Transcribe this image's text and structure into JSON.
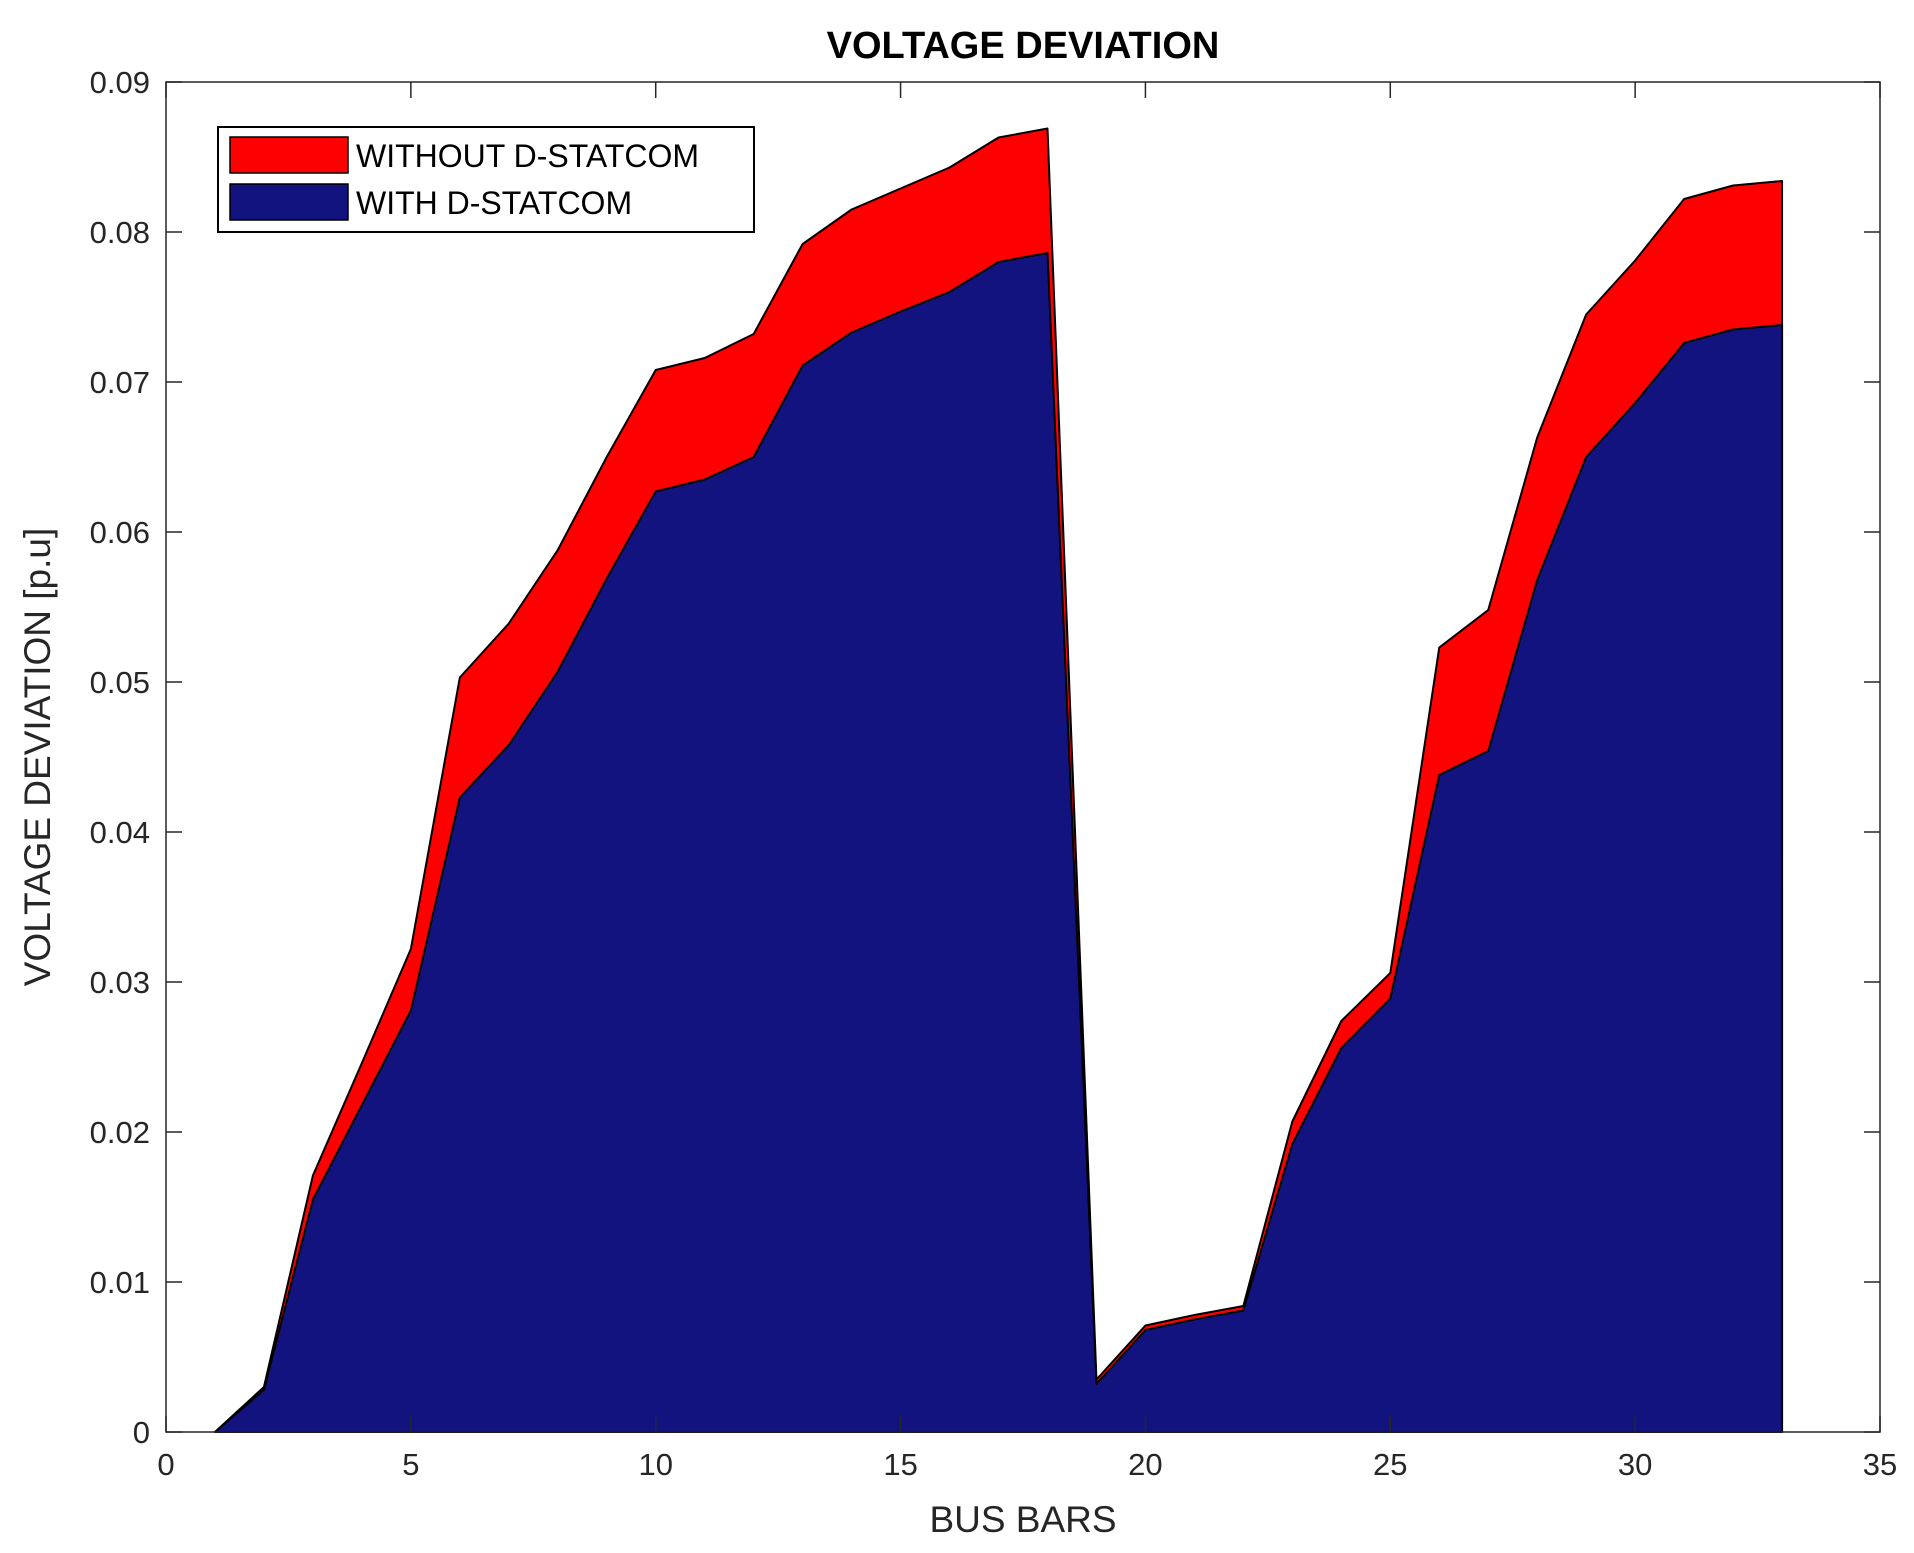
{
  "chart_data": {
    "type": "area",
    "title": "VOLTAGE DEVIATION",
    "xlabel": "BUS BARS",
    "ylabel": "VOLTAGE DEVIATION [p.u]",
    "xlim": [
      0,
      35
    ],
    "ylim": [
      0,
      0.09
    ],
    "xticks": [
      0,
      5,
      10,
      15,
      20,
      25,
      30,
      35
    ],
    "xtick_labels": [
      "0",
      "5",
      "10",
      "15",
      "20",
      "25",
      "30",
      "35"
    ],
    "yticks": [
      0,
      0.01,
      0.02,
      0.03,
      0.04,
      0.05,
      0.06,
      0.07,
      0.08,
      0.09
    ],
    "ytick_labels": [
      "0",
      "0.01",
      "0.02",
      "0.03",
      "0.04",
      "0.05",
      "0.06",
      "0.07",
      "0.08",
      "0.09"
    ],
    "legend_position": "top-left",
    "x": [
      1,
      2,
      3,
      4,
      5,
      6,
      7,
      8,
      9,
      10,
      11,
      12,
      13,
      14,
      15,
      16,
      17,
      18,
      19,
      20,
      21,
      22,
      23,
      24,
      25,
      26,
      27,
      28,
      29,
      30,
      31,
      32,
      33
    ],
    "series": [
      {
        "name": "WITHOUT D-STATCOM",
        "color": "#ff0000",
        "values": [
          0,
          0.003,
          0.0171,
          0.0246,
          0.0322,
          0.0503,
          0.0539,
          0.0588,
          0.065,
          0.0708,
          0.0716,
          0.0732,
          0.0792,
          0.0815,
          0.0829,
          0.0843,
          0.0863,
          0.0869,
          0.0035,
          0.0071,
          0.0078,
          0.0084,
          0.0207,
          0.0274,
          0.0306,
          0.0523,
          0.0548,
          0.0663,
          0.0745,
          0.0781,
          0.0822,
          0.0831,
          0.0834
        ]
      },
      {
        "name": "WITH D-STATCOM",
        "color": "#131380",
        "values": [
          0,
          0.0028,
          0.0155,
          0.0218,
          0.0281,
          0.0423,
          0.0458,
          0.0507,
          0.0569,
          0.0627,
          0.0635,
          0.065,
          0.0711,
          0.0733,
          0.0747,
          0.076,
          0.078,
          0.0786,
          0.0032,
          0.0068,
          0.0075,
          0.0081,
          0.0192,
          0.0256,
          0.0289,
          0.0438,
          0.0454,
          0.0568,
          0.065,
          0.0686,
          0.0726,
          0.0735,
          0.0738
        ]
      }
    ]
  }
}
